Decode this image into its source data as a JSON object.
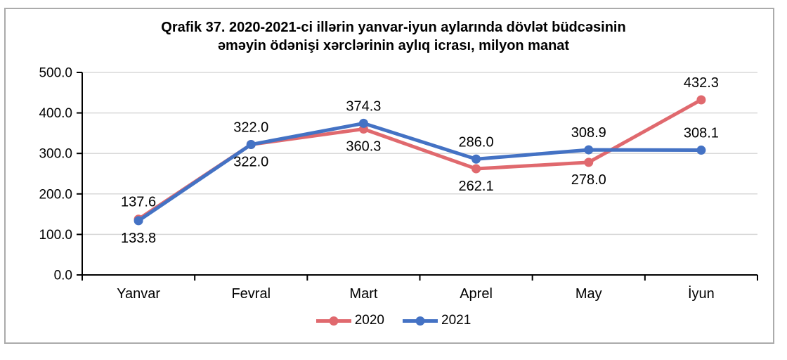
{
  "title": {
    "line1": "Qrafik 37. 2020-2021-ci illərin yanvar-iyun aylarında dövlət büdcəsinin",
    "line2": "əməyin ödənişi xərclərinin aylıq icrası, milyon manat"
  },
  "chart_data": {
    "type": "line",
    "categories": [
      "Yanvar",
      "Fevral",
      "Mart",
      "Aprel",
      "May",
      "İyun"
    ],
    "series": [
      {
        "name": "2020",
        "color": "#e0696e",
        "values": [
          137.6,
          322.0,
          360.3,
          262.1,
          278.0,
          432.3
        ],
        "label_positions": [
          "above",
          "below",
          "below",
          "below",
          "below",
          "above"
        ]
      },
      {
        "name": "2021",
        "color": "#4472c4",
        "values": [
          133.8,
          322.0,
          374.3,
          286.0,
          308.9,
          308.1
        ],
        "label_positions": [
          "below",
          "above",
          "above",
          "above",
          "above",
          "above"
        ]
      }
    ],
    "ylim": [
      0,
      500
    ],
    "ytick_values": [
      0,
      100,
      200,
      300,
      400,
      500
    ],
    "ytick_labels": [
      "0.0",
      "100.0",
      "200.0",
      "300.0",
      "400.0",
      "500.0"
    ],
    "grid": true,
    "legend_position": "bottom",
    "value_decimals": 1
  },
  "colors": {
    "axis": "#000000",
    "grid": "#d9d9d9",
    "frame_border": "#ababab",
    "text": "#000000",
    "background": "#ffffff"
  }
}
